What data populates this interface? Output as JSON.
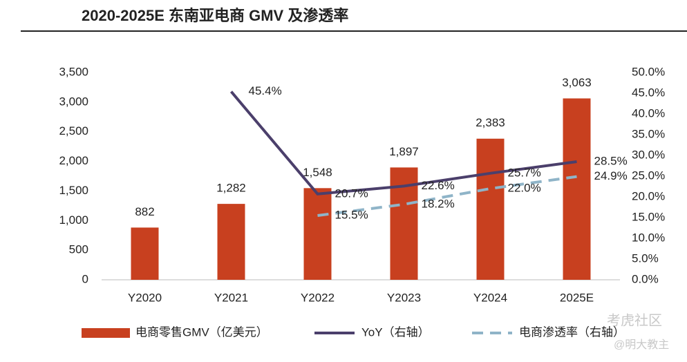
{
  "chart_data": {
    "type": "bar-line",
    "title": "2020-2025E 东南亚电商 GMV 及渗透率",
    "categories": [
      "Y2020",
      "Y2021",
      "Y2022",
      "Y2023",
      "Y2024",
      "2025E"
    ],
    "series": [
      {
        "name": "电商零售GMV（亿美元）",
        "color": "#c8401f",
        "type": "bar",
        "values": [
          882,
          1282,
          1548,
          1897,
          2383,
          3063
        ],
        "value_labels": [
          "882",
          "1,282",
          "1,548",
          "1,897",
          "2,383",
          "3,063"
        ]
      },
      {
        "name": "YoY（右轴）",
        "color": "#4b3f6b",
        "type": "line",
        "axis": "y2",
        "values": [
          null,
          45.4,
          20.7,
          22.6,
          25.7,
          28.5
        ],
        "value_labels": [
          null,
          "45.4%",
          "20.7%",
          "22.6%",
          "25.7%",
          "28.5%"
        ]
      },
      {
        "name": "电商渗透率（右轴）",
        "color": "#8fb4c8",
        "type": "line",
        "dashed": true,
        "axis": "y2",
        "values": [
          null,
          null,
          15.5,
          18.2,
          22.0,
          24.9
        ],
        "value_labels": [
          null,
          null,
          "15.5%",
          "18.2%",
          "22.0%",
          "24.9%"
        ]
      }
    ],
    "ylim": [
      0,
      3500
    ],
    "yticks": [
      0,
      500,
      {
        "value": 1000,
        "label": "1,000"
      },
      {
        "value": 1500,
        "label": "1,500"
      },
      {
        "value": 2000,
        "label": "2,000"
      },
      {
        "value": 2500,
        "label": "2,500"
      },
      {
        "value": 3000,
        "label": "3,000"
      },
      {
        "value": 3500,
        "label": "3,500"
      }
    ],
    "y2lim": [
      0,
      50
    ],
    "y2ticks": [
      {
        "value": 0,
        "label": "0.0%"
      },
      {
        "value": 5,
        "label": "5.0%"
      },
      {
        "value": 10,
        "label": "10.0%"
      },
      {
        "value": 15,
        "label": "15.0%"
      },
      {
        "value": 20,
        "label": "20.0%"
      },
      {
        "value": 25,
        "label": "25.0%"
      },
      {
        "value": 30,
        "label": "30.0%"
      },
      {
        "value": 35,
        "label": "35.0%"
      },
      {
        "value": 40,
        "label": "40.0%"
      },
      {
        "value": 45,
        "label": "45.0%"
      },
      {
        "value": 50,
        "label": "50.0%"
      }
    ],
    "legend": "bottom",
    "watermark": [
      "考虎社区",
      "@明大教主"
    ]
  }
}
